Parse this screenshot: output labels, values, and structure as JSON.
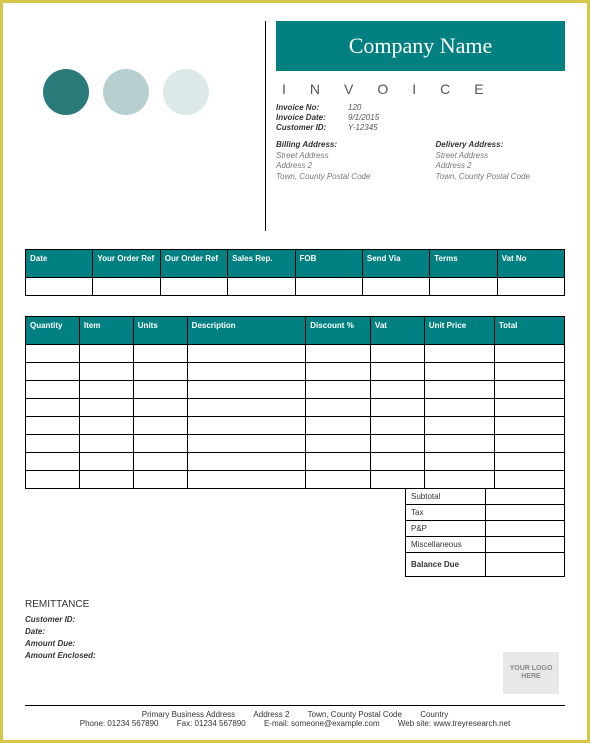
{
  "colors": {
    "teal": "#008080",
    "circle1": "#2a7a7a",
    "circle2": "#b8cfcf",
    "circle3": "#dde9e9",
    "border": "#d4c74a"
  },
  "header": {
    "company_name": "Company Name",
    "invoice_word": "INVOICE",
    "meta": {
      "invoice_no_label": "Invoice No:",
      "invoice_no": "120",
      "invoice_date_label": "Invoice Date:",
      "invoice_date": "9/1/2015",
      "customer_id_label": "Customer ID:",
      "customer_id": "Y-12345"
    },
    "billing": {
      "title": "Billing Address:",
      "line1": "Street Address",
      "line2": "Address 2",
      "line3": "Town, County Postal Code"
    },
    "delivery": {
      "title": "Delivery Address:",
      "line1": "Street Address",
      "line2": "Address 2",
      "line3": "Town, County Postal Code"
    }
  },
  "order_table": {
    "headers": [
      "Date",
      "Your Order Ref",
      "Our Order Ref",
      "Sales Rep.",
      "FOB",
      "Send Via",
      "Terms",
      "Vat No"
    ],
    "rows": [
      [
        "",
        "",
        "",
        "",
        "",
        "",
        "",
        ""
      ]
    ]
  },
  "items_table": {
    "headers": [
      "Quantity",
      "Item",
      "Units",
      "Description",
      "Discount %",
      "Vat",
      "Unit Price",
      "Total"
    ],
    "col_widths": [
      "10%",
      "10%",
      "10%",
      "22%",
      "12%",
      "10%",
      "13%",
      "13%"
    ],
    "rows": 8
  },
  "totals": {
    "subtotal_label": "Subtotal",
    "tax_label": "Tax",
    "pp_label": "P&P",
    "misc_label": "Miscellaneous",
    "balance_label": "Balance Due"
  },
  "remittance": {
    "title": "REMITTANCE",
    "customer_id_label": "Customer ID:",
    "date_label": "Date:",
    "amount_due_label": "Amount Due:",
    "amount_enclosed_label": "Amount Enclosed:"
  },
  "logo_placeholder": "YOUR LOGO HERE",
  "footer": {
    "line1": {
      "a": "Primary Business Address",
      "b": "Address 2",
      "c": "Town, County  Postal Code",
      "d": "Country"
    },
    "line2": {
      "a": "Phone: 01234 567890",
      "b": "Fax: 01234 567890",
      "c": "E-mail: someone@example.com",
      "d": "Web site: www.treyresearch.net"
    }
  }
}
